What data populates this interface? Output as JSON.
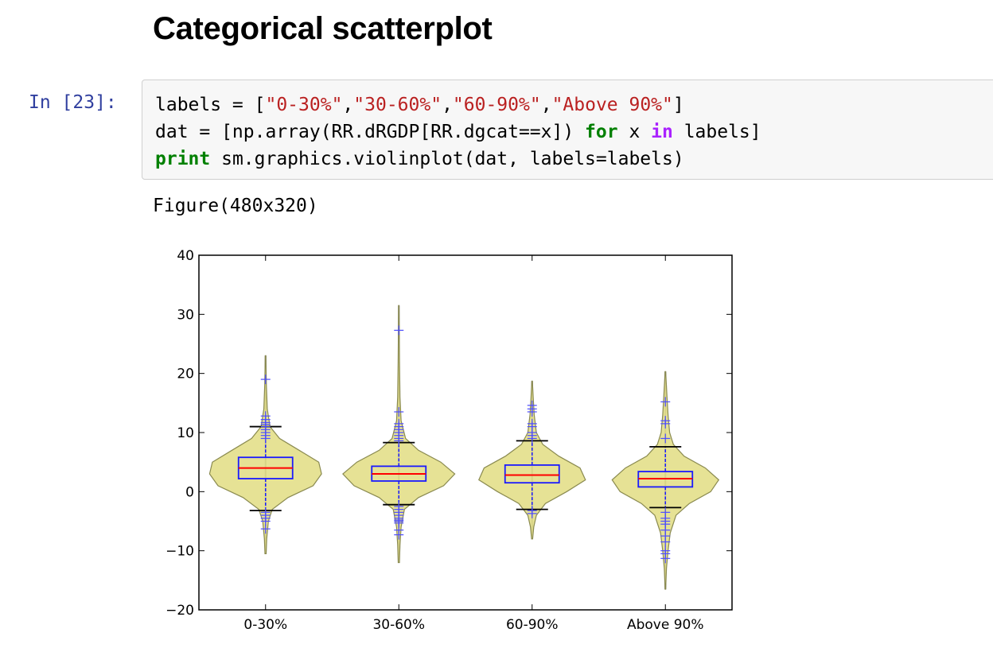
{
  "heading": "Categorical scatterplot",
  "cell": {
    "prompt": "In [23]:",
    "line1": {
      "a": "labels = [",
      "s1": "\"0-30%\"",
      "c1": ",",
      "s2": "\"30-60%\"",
      "c2": ",",
      "s3": "\"60-90%\"",
      "c3": ",",
      "s4": "\"Above 90%\"",
      "end": "]"
    },
    "line2": {
      "a": "dat = [np.array(RR.dRGDP[RR.dgcat==x]) ",
      "kw_for": "for",
      "b": " x ",
      "kw_in": "in",
      "c": " labels]"
    },
    "line3": {
      "kw_print": "print",
      "b": " sm.graphics.violinplot(dat, labels=labels)"
    }
  },
  "output_text": "Figure(480x320)",
  "chart_data": {
    "type": "violin",
    "categories": [
      "0-30%",
      "30-60%",
      "60-90%",
      "Above 90%"
    ],
    "ylim": [
      -20,
      40
    ],
    "yticks": [
      -20,
      -10,
      0,
      10,
      20,
      30,
      40
    ],
    "ytick_labels": [
      "−20",
      "−10",
      "0",
      "10",
      "20",
      "30",
      "40"
    ],
    "grid": false,
    "colors": {
      "violin_fill": "#e3df8a",
      "violin_edge": "#8a8a50",
      "box": "#1a1aff",
      "median": "#ff0000",
      "whisker": "#000000",
      "points": "#4d4dff"
    },
    "groups": [
      {
        "name": "0-30%",
        "min": -10.5,
        "max": 23,
        "q1": 2.2,
        "q3": 5.8,
        "median": 4.0,
        "whisker_low": -3.2,
        "whisker_high": 11.0,
        "halfwidth": 0.42,
        "shape": [
          [
            -10.5,
            0.01
          ],
          [
            -8,
            0.02
          ],
          [
            -5,
            0.05
          ],
          [
            -3,
            0.12
          ],
          [
            -1,
            0.4
          ],
          [
            1,
            0.85
          ],
          [
            3,
            1.0
          ],
          [
            5,
            0.95
          ],
          [
            7,
            0.6
          ],
          [
            9,
            0.25
          ],
          [
            11,
            0.08
          ],
          [
            14,
            0.03
          ],
          [
            18,
            0.015
          ],
          [
            23,
            0.005
          ]
        ],
        "points": [
          19,
          12.8,
          12.2,
          11.7,
          11.4,
          11.0,
          10.5,
          10,
          9.5,
          9,
          -3.5,
          -4,
          -4.5,
          -5,
          -6.3
        ]
      },
      {
        "name": "30-60%",
        "min": -12,
        "max": 31.5,
        "q1": 1.8,
        "q3": 4.3,
        "median": 3.0,
        "whisker_low": -2.2,
        "whisker_high": 8.3,
        "halfwidth": 0.42,
        "shape": [
          [
            -12,
            0.01
          ],
          [
            -9,
            0.02
          ],
          [
            -6,
            0.04
          ],
          [
            -3,
            0.1
          ],
          [
            -1,
            0.35
          ],
          [
            1,
            0.8
          ],
          [
            3,
            1.0
          ],
          [
            5,
            0.75
          ],
          [
            7,
            0.35
          ],
          [
            9,
            0.12
          ],
          [
            12,
            0.04
          ],
          [
            16,
            0.02
          ],
          [
            22,
            0.012
          ],
          [
            27,
            0.008
          ],
          [
            31.5,
            0.004
          ]
        ],
        "points": [
          27.3,
          13.5,
          11.5,
          11.0,
          10.5,
          10.0,
          9.5,
          9.0,
          8.6,
          -2.5,
          -3,
          -3.5,
          -4,
          -4.5,
          -4.8,
          -5,
          -5.3,
          -6.5,
          -7.3
        ]
      },
      {
        "name": "60-90%",
        "min": -8,
        "max": 18.7,
        "q1": 1.5,
        "q3": 4.5,
        "median": 2.8,
        "whisker_low": -3.0,
        "whisker_high": 8.6,
        "halfwidth": 0.4,
        "shape": [
          [
            -8,
            0.01
          ],
          [
            -6,
            0.03
          ],
          [
            -4,
            0.08
          ],
          [
            -2,
            0.25
          ],
          [
            0,
            0.65
          ],
          [
            2,
            1.0
          ],
          [
            4,
            0.9
          ],
          [
            6,
            0.5
          ],
          [
            8,
            0.2
          ],
          [
            10,
            0.08
          ],
          [
            13,
            0.04
          ],
          [
            16,
            0.02
          ],
          [
            18.7,
            0.005
          ]
        ],
        "points": [
          14.6,
          14.0,
          13.5,
          11.5,
          11.0,
          10.0,
          9.5,
          9.0,
          -3.2,
          -3.7
        ]
      },
      {
        "name": "Above 90%",
        "min": -16.5,
        "max": 20.3,
        "q1": 0.8,
        "q3": 3.4,
        "median": 2.2,
        "whisker_low": -2.7,
        "whisker_high": 7.6,
        "halfwidth": 0.4,
        "shape": [
          [
            -16.5,
            0.005
          ],
          [
            -13,
            0.02
          ],
          [
            -10,
            0.05
          ],
          [
            -7,
            0.09
          ],
          [
            -4,
            0.2
          ],
          [
            -2,
            0.45
          ],
          [
            0,
            0.85
          ],
          [
            2,
            1.0
          ],
          [
            4,
            0.75
          ],
          [
            6,
            0.35
          ],
          [
            8,
            0.15
          ],
          [
            10,
            0.08
          ],
          [
            13,
            0.05
          ],
          [
            16,
            0.03
          ],
          [
            20.3,
            0.005
          ]
        ],
        "points": [
          15.2,
          12.0,
          11.5,
          9.0,
          -3.5,
          -4.5,
          -5.0,
          -5.5,
          -6.5,
          -7.5,
          -8.5,
          -10.0,
          -10.5,
          -11.3
        ]
      }
    ]
  }
}
